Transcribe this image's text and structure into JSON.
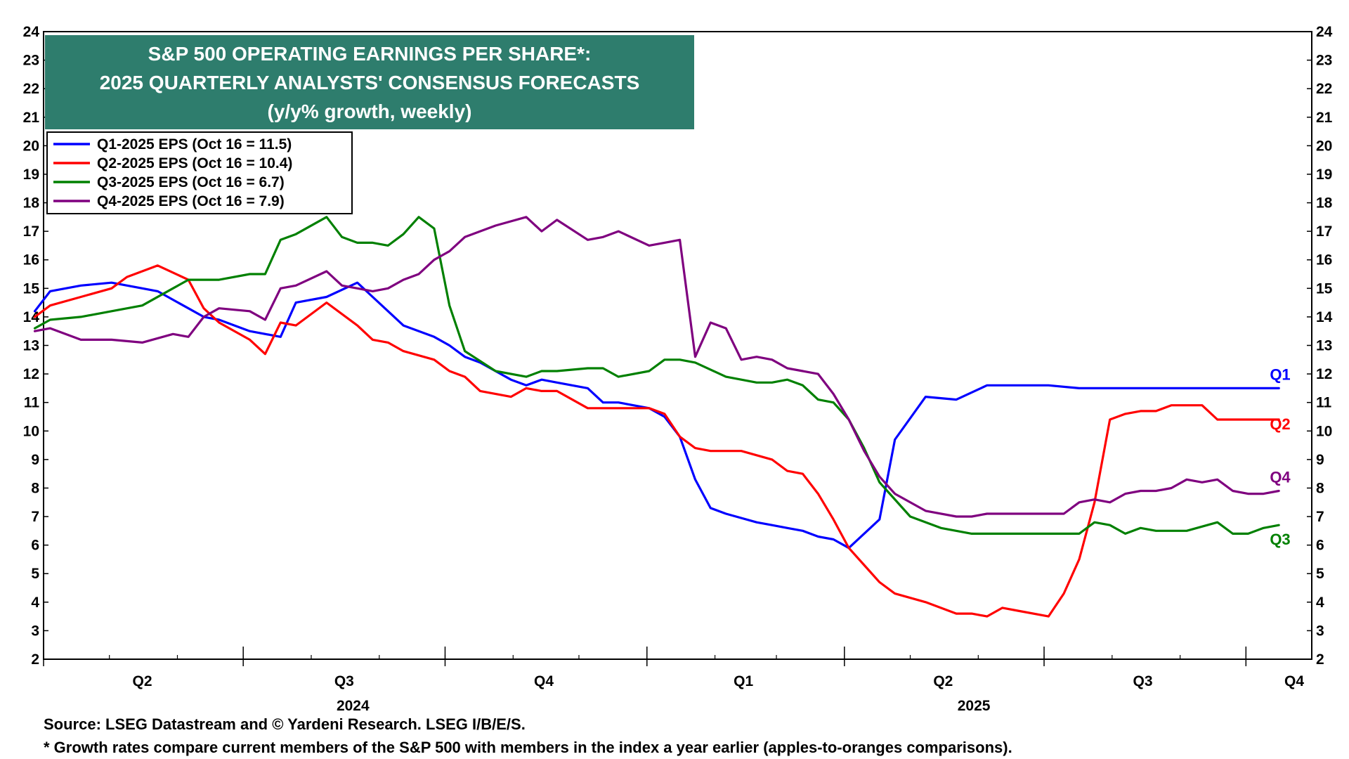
{
  "chart_data": {
    "type": "line",
    "title": [
      "S&P 500 OPERATING EARNINGS PER SHARE*:",
      "2025 QUARTERLY ANALYSTS' CONSENSUS FORECASTS",
      "(y/y% growth, weekly)"
    ],
    "ylim": [
      2,
      24
    ],
    "yticks": [
      2,
      3,
      4,
      5,
      6,
      7,
      8,
      9,
      10,
      11,
      12,
      13,
      14,
      15,
      16,
      17,
      18,
      19,
      20,
      21,
      22,
      23,
      24
    ],
    "xlim": [
      "2024-04-01",
      "2025-10-31"
    ],
    "quarter_ticks": [
      "2024-04-01",
      "2024-07-01",
      "2024-10-01",
      "2025-01-01",
      "2025-04-01",
      "2025-07-01",
      "2025-10-01"
    ],
    "quarter_labels": [
      {
        "label": "Q2",
        "date": "2024-05-16"
      },
      {
        "label": "Q3",
        "date": "2024-08-16"
      },
      {
        "label": "Q4",
        "date": "2024-11-15"
      },
      {
        "label": "Q1",
        "date": "2025-02-14"
      },
      {
        "label": "Q2",
        "date": "2025-05-16"
      },
      {
        "label": "Q3",
        "date": "2025-08-15"
      },
      {
        "label": "Q4",
        "date": "2025-10-23"
      }
    ],
    "year_labels": [
      {
        "label": "2024",
        "date": "2024-08-20"
      },
      {
        "label": "2025",
        "date": "2025-05-30"
      }
    ],
    "legend_position": "top-left",
    "grid": false,
    "series": [
      {
        "name": "Q1-2025 EPS (Oct 16 = 11.5)",
        "end_label": "Q1",
        "color": "#0000ff",
        "x": [
          "2024-03-28",
          "2024-04-04",
          "2024-04-18",
          "2024-05-02",
          "2024-05-16",
          "2024-05-23",
          "2024-06-06",
          "2024-06-13",
          "2024-06-20",
          "2024-07-04",
          "2024-07-18",
          "2024-07-25",
          "2024-08-08",
          "2024-08-22",
          "2024-08-29",
          "2024-09-05",
          "2024-09-12",
          "2024-09-26",
          "2024-10-03",
          "2024-10-10",
          "2024-10-17",
          "2024-10-31",
          "2024-11-07",
          "2024-11-14",
          "2024-11-21",
          "2024-12-05",
          "2024-12-12",
          "2024-12-19",
          "2025-01-02",
          "2025-01-09",
          "2025-01-16",
          "2025-01-23",
          "2025-01-30",
          "2025-02-06",
          "2025-02-20",
          "2025-02-27",
          "2025-03-06",
          "2025-03-13",
          "2025-03-20",
          "2025-03-27",
          "2025-04-03",
          "2025-04-10",
          "2025-04-17",
          "2025-04-24",
          "2025-05-08",
          "2025-05-22",
          "2025-06-05",
          "2025-06-19",
          "2025-07-03",
          "2025-07-17",
          "2025-08-07",
          "2025-08-28",
          "2025-09-18",
          "2025-10-16"
        ],
        "y": [
          14.2,
          14.9,
          15.1,
          15.2,
          15.0,
          14.9,
          14.3,
          14.0,
          13.9,
          13.5,
          13.3,
          14.5,
          14.7,
          15.2,
          14.7,
          14.2,
          13.7,
          13.3,
          13.0,
          12.6,
          12.4,
          11.8,
          11.6,
          11.8,
          11.7,
          11.5,
          11.0,
          11.0,
          10.8,
          10.5,
          9.8,
          8.3,
          7.3,
          7.1,
          6.8,
          6.7,
          6.6,
          6.5,
          6.3,
          6.2,
          5.9,
          6.4,
          6.9,
          9.7,
          11.2,
          11.1,
          11.6,
          11.6,
          11.6,
          11.5,
          11.5,
          11.5,
          11.5,
          11.5
        ]
      },
      {
        "name": "Q2-2025 EPS (Oct 16 = 10.4)",
        "end_label": "Q2",
        "color": "#ff0000",
        "x": [
          "2024-03-28",
          "2024-04-04",
          "2024-04-18",
          "2024-05-02",
          "2024-05-09",
          "2024-05-23",
          "2024-06-06",
          "2024-06-13",
          "2024-06-20",
          "2024-07-04",
          "2024-07-11",
          "2024-07-18",
          "2024-07-25",
          "2024-08-08",
          "2024-08-22",
          "2024-08-29",
          "2024-09-05",
          "2024-09-12",
          "2024-09-26",
          "2024-10-03",
          "2024-10-10",
          "2024-10-17",
          "2024-10-31",
          "2024-11-07",
          "2024-11-14",
          "2024-11-21",
          "2024-12-05",
          "2024-12-12",
          "2024-12-19",
          "2025-01-02",
          "2025-01-09",
          "2025-01-16",
          "2025-01-23",
          "2025-01-30",
          "2025-02-13",
          "2025-02-27",
          "2025-03-06",
          "2025-03-13",
          "2025-03-20",
          "2025-03-27",
          "2025-04-03",
          "2025-04-10",
          "2025-04-17",
          "2025-04-24",
          "2025-05-08",
          "2025-05-22",
          "2025-05-29",
          "2025-06-05",
          "2025-06-12",
          "2025-06-19",
          "2025-07-03",
          "2025-07-10",
          "2025-07-17",
          "2025-07-24",
          "2025-07-31",
          "2025-08-07",
          "2025-08-14",
          "2025-08-21",
          "2025-08-28",
          "2025-09-11",
          "2025-09-18",
          "2025-09-25",
          "2025-10-02",
          "2025-10-16"
        ],
        "y": [
          14.0,
          14.4,
          14.7,
          15.0,
          15.4,
          15.8,
          15.3,
          14.3,
          13.8,
          13.2,
          12.7,
          13.8,
          13.7,
          14.5,
          13.7,
          13.2,
          13.1,
          12.8,
          12.5,
          12.1,
          11.9,
          11.4,
          11.2,
          11.5,
          11.4,
          11.4,
          10.8,
          10.8,
          10.8,
          10.8,
          10.6,
          9.8,
          9.4,
          9.3,
          9.3,
          9.0,
          8.6,
          8.5,
          7.8,
          6.9,
          5.9,
          5.3,
          4.7,
          4.3,
          4.0,
          3.6,
          3.6,
          3.5,
          3.8,
          3.7,
          3.5,
          4.3,
          5.5,
          7.5,
          10.4,
          10.6,
          10.7,
          10.7,
          10.9,
          10.9,
          10.4,
          10.4,
          10.4,
          10.4
        ]
      },
      {
        "name": "Q3-2025 EPS (Oct 16 = 6.7)",
        "end_label": "Q3",
        "color": "#008000",
        "x": [
          "2024-03-28",
          "2024-04-04",
          "2024-04-18",
          "2024-05-02",
          "2024-05-16",
          "2024-05-30",
          "2024-06-06",
          "2024-06-13",
          "2024-06-20",
          "2024-07-04",
          "2024-07-11",
          "2024-07-18",
          "2024-07-25",
          "2024-08-08",
          "2024-08-15",
          "2024-08-22",
          "2024-08-29",
          "2024-09-05",
          "2024-09-12",
          "2024-09-19",
          "2024-09-26",
          "2024-10-03",
          "2024-10-10",
          "2024-10-24",
          "2024-11-07",
          "2024-11-14",
          "2024-11-21",
          "2024-12-05",
          "2024-12-12",
          "2024-12-19",
          "2025-01-02",
          "2025-01-09",
          "2025-01-16",
          "2025-01-23",
          "2025-02-06",
          "2025-02-20",
          "2025-02-27",
          "2025-03-06",
          "2025-03-13",
          "2025-03-20",
          "2025-03-27",
          "2025-04-03",
          "2025-04-10",
          "2025-04-17",
          "2025-05-01",
          "2025-05-15",
          "2025-05-29",
          "2025-06-05",
          "2025-06-19",
          "2025-07-03",
          "2025-07-10",
          "2025-07-17",
          "2025-07-24",
          "2025-07-31",
          "2025-08-07",
          "2025-08-14",
          "2025-08-21",
          "2025-09-04",
          "2025-09-18",
          "2025-09-25",
          "2025-10-02",
          "2025-10-09",
          "2025-10-16"
        ],
        "y": [
          13.6,
          13.9,
          14.0,
          14.2,
          14.4,
          15.0,
          15.3,
          15.3,
          15.3,
          15.5,
          15.5,
          16.7,
          16.9,
          17.5,
          16.8,
          16.6,
          16.6,
          16.5,
          16.9,
          17.5,
          17.1,
          14.4,
          12.8,
          12.1,
          11.9,
          12.1,
          12.1,
          12.2,
          12.2,
          11.9,
          12.1,
          12.5,
          12.5,
          12.4,
          11.9,
          11.7,
          11.7,
          11.8,
          11.6,
          11.1,
          11.0,
          10.4,
          9.4,
          8.2,
          7.0,
          6.6,
          6.4,
          6.4,
          6.4,
          6.4,
          6.4,
          6.4,
          6.8,
          6.7,
          6.4,
          6.6,
          6.5,
          6.5,
          6.8,
          6.4,
          6.4,
          6.6,
          6.7
        ]
      },
      {
        "name": "Q4-2025 EPS (Oct 16 = 7.9)",
        "end_label": "Q4",
        "color": "#7f007f",
        "x": [
          "2024-03-28",
          "2024-04-04",
          "2024-04-18",
          "2024-05-02",
          "2024-05-16",
          "2024-05-30",
          "2024-06-06",
          "2024-06-13",
          "2024-06-20",
          "2024-07-04",
          "2024-07-11",
          "2024-07-18",
          "2024-07-25",
          "2024-08-08",
          "2024-08-15",
          "2024-08-22",
          "2024-08-29",
          "2024-09-05",
          "2024-09-12",
          "2024-09-19",
          "2024-09-26",
          "2024-10-03",
          "2024-10-10",
          "2024-10-24",
          "2024-11-07",
          "2024-11-14",
          "2024-11-21",
          "2024-12-05",
          "2024-12-12",
          "2024-12-19",
          "2025-01-02",
          "2025-01-09",
          "2025-01-16",
          "2025-01-23",
          "2025-01-30",
          "2025-02-06",
          "2025-02-13",
          "2025-02-20",
          "2025-02-27",
          "2025-03-06",
          "2025-03-13",
          "2025-03-20",
          "2025-03-27",
          "2025-04-03",
          "2025-04-10",
          "2025-04-17",
          "2025-04-24",
          "2025-05-08",
          "2025-05-22",
          "2025-05-29",
          "2025-06-05",
          "2025-06-19",
          "2025-07-03",
          "2025-07-10",
          "2025-07-17",
          "2025-07-24",
          "2025-07-31",
          "2025-08-07",
          "2025-08-14",
          "2025-08-21",
          "2025-08-28",
          "2025-09-04",
          "2025-09-11",
          "2025-09-18",
          "2025-09-25",
          "2025-10-02",
          "2025-10-09",
          "2025-10-16"
        ],
        "y": [
          13.5,
          13.6,
          13.2,
          13.2,
          13.1,
          13.4,
          13.3,
          14.0,
          14.3,
          14.2,
          13.9,
          15.0,
          15.1,
          15.6,
          15.1,
          15.0,
          14.9,
          15.0,
          15.3,
          15.5,
          16.0,
          16.3,
          16.8,
          17.2,
          17.5,
          17.0,
          17.4,
          16.7,
          16.8,
          17.0,
          16.5,
          16.6,
          16.7,
          12.6,
          13.8,
          13.6,
          12.5,
          12.6,
          12.5,
          12.2,
          12.1,
          12.0,
          11.3,
          10.4,
          9.3,
          8.4,
          7.8,
          7.2,
          7.0,
          7.0,
          7.1,
          7.1,
          7.1,
          7.1,
          7.5,
          7.6,
          7.5,
          7.8,
          7.9,
          7.9,
          8.0,
          8.3,
          8.2,
          8.3,
          7.9,
          7.8,
          7.8,
          7.9
        ]
      }
    ]
  },
  "footnotes": {
    "source": "Source: LSEG Datastream and © Yardeni Research. LSEG I/B/E/S.",
    "note": "* Growth rates compare current members of the S&P 500 with members in the index a year earlier (apples-to-oranges comparisons)."
  }
}
